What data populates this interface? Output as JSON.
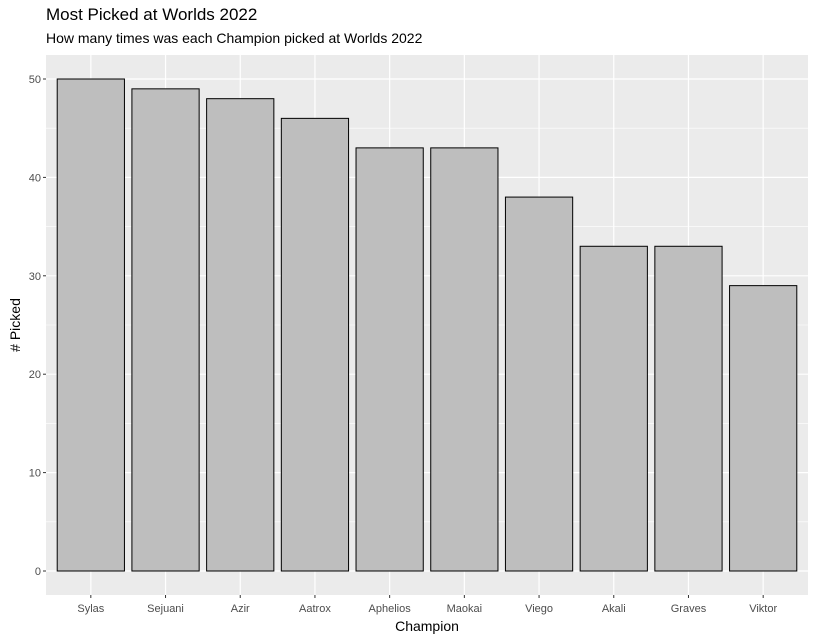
{
  "chart_data": {
    "type": "bar",
    "title": "Most Picked at Worlds 2022",
    "subtitle": "How many times was each Champion picked at Worlds 2022",
    "xlabel": "Champion",
    "ylabel": "# Picked",
    "categories": [
      "Sylas",
      "Sejuani",
      "Azir",
      "Aatrox",
      "Aphelios",
      "Maokai",
      "Viego",
      "Akali",
      "Graves",
      "Viktor"
    ],
    "values": [
      50,
      49,
      48,
      46,
      43,
      43,
      38,
      33,
      33,
      29
    ],
    "ylim": [
      0,
      50
    ],
    "yticks": [
      0,
      10,
      20,
      30,
      40,
      50
    ],
    "grid": true,
    "legend": "none",
    "colors": {
      "bar_fill": "#bebebe",
      "bar_stroke": "#000000",
      "panel_bg": "#ebebeb",
      "grid": "#ffffff"
    }
  }
}
